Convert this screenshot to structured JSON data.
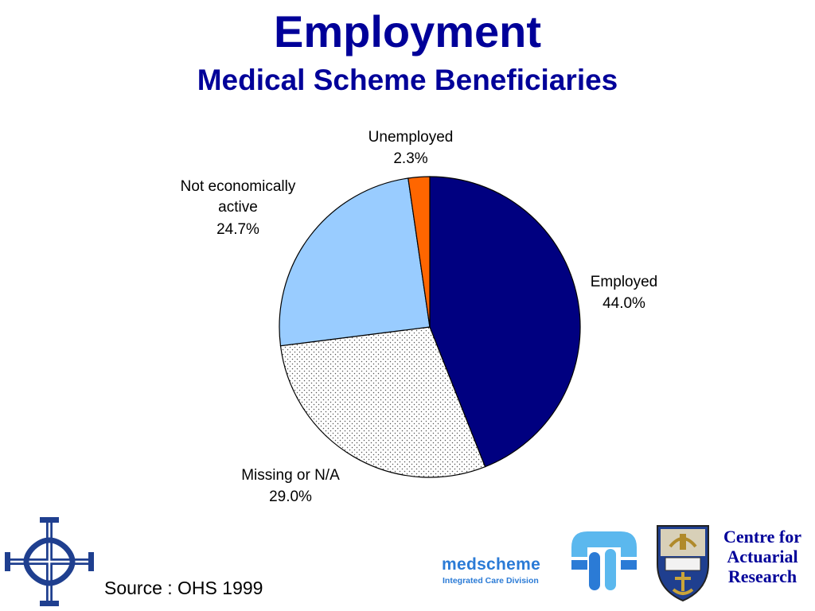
{
  "title": "Employment",
  "subtitle": "Medical Scheme Beneficiaries",
  "source": "Source : OHS 1999",
  "chart_data": {
    "type": "pie",
    "slices": [
      {
        "name": "Employed",
        "value": 44.0,
        "label": "44.0%",
        "color": "#000080",
        "pattern": "solid"
      },
      {
        "name": "Missing or N/A",
        "value": 29.0,
        "label": "29.0%",
        "color": "#ffffff",
        "pattern": "dotted"
      },
      {
        "name": "Not economically active",
        "value": 24.7,
        "label": "24.7%",
        "color": "#99ccff",
        "pattern": "solid"
      },
      {
        "name": "Unemployed",
        "value": 2.3,
        "label": "2.3%",
        "color": "#ff6600",
        "pattern": "solid"
      }
    ],
    "start": "12 o'clock",
    "direction": "clockwise",
    "labels_outside": true
  },
  "logos": {
    "medscheme": {
      "name": "medscheme",
      "tagline": "Integrated Care Division",
      "color": "#2b7bd6"
    },
    "car": {
      "lines": [
        "Centre for",
        "Actuarial",
        "Research"
      ],
      "color": "#000099"
    },
    "left_logo_icon": "cross-knot-icon",
    "crest_icon": "university-crest-icon"
  }
}
